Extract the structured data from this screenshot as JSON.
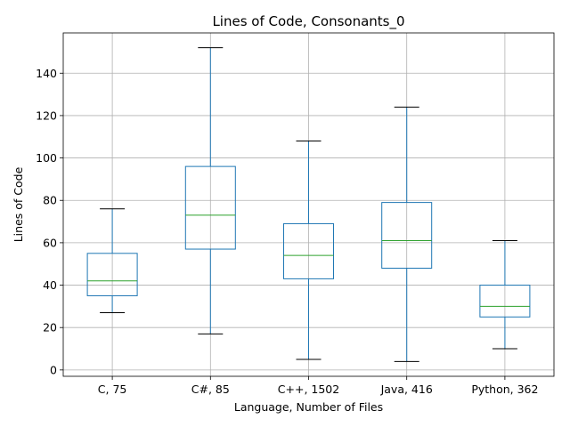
{
  "chart_data": {
    "type": "box",
    "title": "Lines of Code, Consonants_0",
    "xlabel": "Language, Number of Files",
    "ylabel": "Lines of Code",
    "ylim": [
      -3,
      159
    ],
    "yticks": [
      0,
      20,
      40,
      60,
      80,
      100,
      120,
      140
    ],
    "grid": true,
    "categories": [
      "C, 75",
      "C#, 85",
      "C++, 1502",
      "Java, 416",
      "Python, 362"
    ],
    "boxes": [
      {
        "whisker_low": 27,
        "q1": 35,
        "median": 42,
        "q3": 55,
        "whisker_high": 76
      },
      {
        "whisker_low": 17,
        "q1": 57,
        "median": 73,
        "q3": 96,
        "whisker_high": 152
      },
      {
        "whisker_low": 5,
        "q1": 43,
        "median": 54,
        "q3": 69,
        "whisker_high": 108
      },
      {
        "whisker_low": 4,
        "q1": 48,
        "median": 61,
        "q3": 79,
        "whisker_high": 124
      },
      {
        "whisker_low": 10,
        "q1": 25,
        "median": 30,
        "q3": 40,
        "whisker_high": 61
      }
    ],
    "colors": {
      "box": "#1f77b4",
      "median": "#2ca02c",
      "cap": "#000000",
      "grid": "#b0b0b0"
    }
  }
}
